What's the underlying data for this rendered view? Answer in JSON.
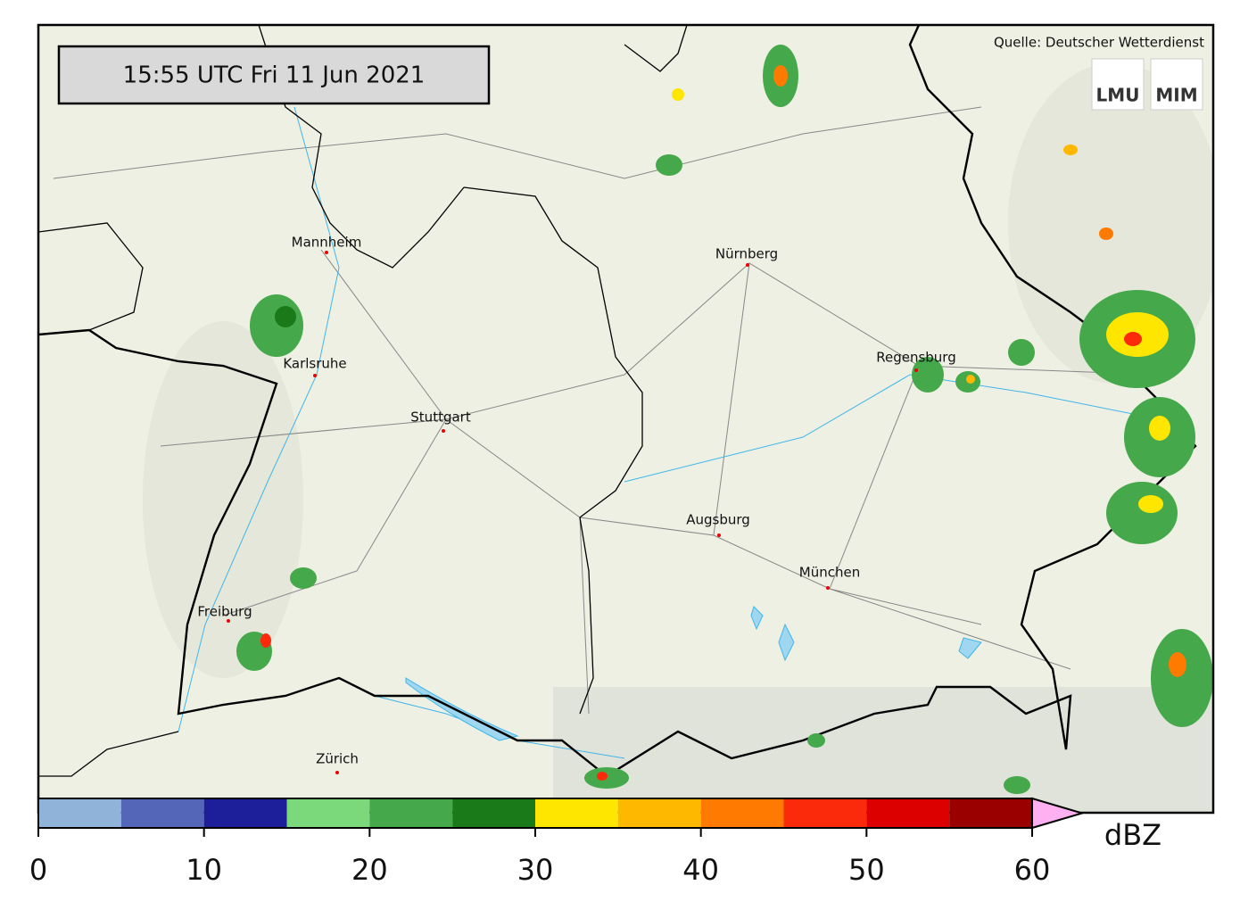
{
  "header": {
    "timestamp": "15:55 UTC  Fri 11 Jun 2021",
    "source": "Quelle: Deutscher Wetterdienst",
    "logos": [
      "LMU",
      "MIM"
    ]
  },
  "cities": [
    "Mannheim",
    "Nürnberg",
    "Karlsruhe",
    "Stuttgart",
    "Regensburg",
    "Augsburg",
    "München",
    "Freiburg",
    "Zürich"
  ],
  "colorbar": {
    "bounds": [
      0,
      5,
      10,
      15,
      20,
      25,
      30,
      35,
      40,
      45,
      50,
      55,
      60
    ],
    "colors": [
      "#8fb3d9",
      "#5466b8",
      "#1c1f99",
      "#7bd87b",
      "#45a84a",
      "#1a7a1a",
      "#ffe600",
      "#ffb800",
      "#ff7a00",
      "#fa2a0a",
      "#dc0000",
      "#9a0000"
    ],
    "extend_color": "#ffb0f0",
    "ticks": [
      0,
      10,
      20,
      30,
      40,
      50,
      60
    ],
    "unit": "dBZ"
  }
}
